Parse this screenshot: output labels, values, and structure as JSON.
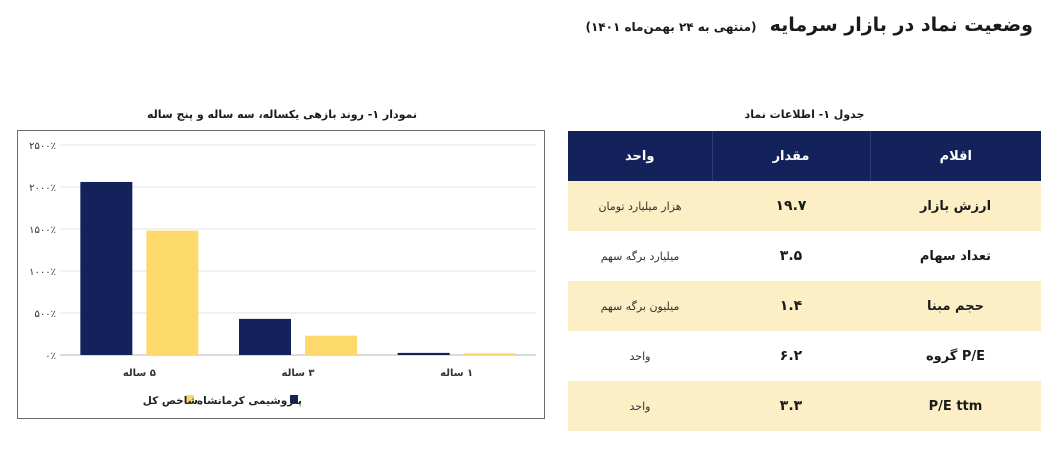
{
  "header": {
    "title": "وضعیت نماد در بازار سرمایه",
    "subtitle": "(منتهی به ۲۴ بهمن‌ماه ۱۴۰۱)"
  },
  "table": {
    "caption": "جدول ۱- اطلاعات نماد",
    "columns": [
      "اقلام",
      "مقدار",
      "واحد"
    ],
    "rows": [
      {
        "item": "ارزش بازار",
        "value": "۱۹.۷",
        "unit": "هزار میلیارد تومان"
      },
      {
        "item": "تعداد سهام",
        "value": "۳.۵",
        "unit": "میلیارد برگه سهم"
      },
      {
        "item": "حجم مبنا",
        "value": "۱.۴",
        "unit": "میلیون برگه سهم"
      },
      {
        "item": "P/E گروه",
        "value": "۶.۲",
        "unit": "واحد"
      },
      {
        "item": "P/E ttm",
        "value": "۳.۳",
        "unit": "واحد"
      }
    ]
  },
  "chart_data": {
    "type": "bar",
    "title": "نمودار ۱- روند بازهی یکساله، سه ساله و پنج ساله",
    "categories": [
      "۱ ساله",
      "۳ ساله",
      "۵ ساله"
    ],
    "series": [
      {
        "name": "پتروشیمی کرمانشاه",
        "color": "#13225a",
        "values": [
          25,
          430,
          2060
        ]
      },
      {
        "name": "شاخص کل",
        "color": "#fdd96b",
        "values": [
          20,
          230,
          1480
        ]
      }
    ],
    "ylim": [
      0,
      2500
    ],
    "yticks": [
      0,
      500,
      1000,
      1500,
      2000,
      2500
    ],
    "ytick_labels": [
      "۰٪",
      "۵۰۰٪",
      "۱۰۰۰٪",
      "۱۵۰۰٪",
      "۲۰۰۰٪",
      "۲۵۰۰٪"
    ],
    "grid": true,
    "legend": "bottom-center"
  }
}
